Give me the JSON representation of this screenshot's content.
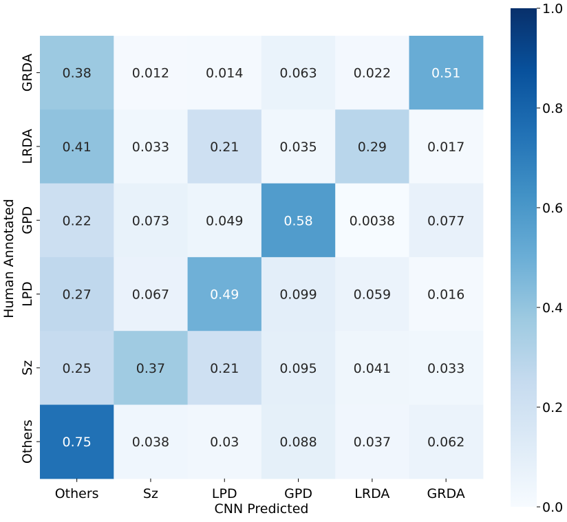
{
  "chart_data": {
    "type": "heatmap",
    "title": "",
    "xlabel": "CNN Predicted",
    "ylabel": "Human Annotated",
    "x_categories": [
      "Others",
      "Sz",
      "LPD",
      "GPD",
      "LRDA",
      "GRDA"
    ],
    "y_categories": [
      "GRDA",
      "LRDA",
      "GPD",
      "LPD",
      "Sz",
      "Others"
    ],
    "values": [
      [
        "0.38",
        "0.012",
        "0.014",
        "0.063",
        "0.022",
        "0.51"
      ],
      [
        "0.41",
        "0.033",
        "0.21",
        "0.035",
        "0.29",
        "0.017"
      ],
      [
        "0.22",
        "0.073",
        "0.049",
        "0.58",
        "0.0038",
        "0.077"
      ],
      [
        "0.27",
        "0.067",
        "0.49",
        "0.099",
        "0.059",
        "0.016"
      ],
      [
        "0.25",
        "0.37",
        "0.21",
        "0.095",
        "0.041",
        "0.033"
      ],
      [
        "0.75",
        "0.038",
        "0.03",
        "0.088",
        "0.037",
        "0.062"
      ]
    ],
    "colorbar": {
      "min": 0.0,
      "max": 1.0,
      "ticks": [
        "0.0",
        "0.2",
        "0.4",
        "0.6",
        "0.8",
        "1.0"
      ]
    },
    "colormap": "Blues",
    "grid": false,
    "legend": "colorbar-right"
  }
}
